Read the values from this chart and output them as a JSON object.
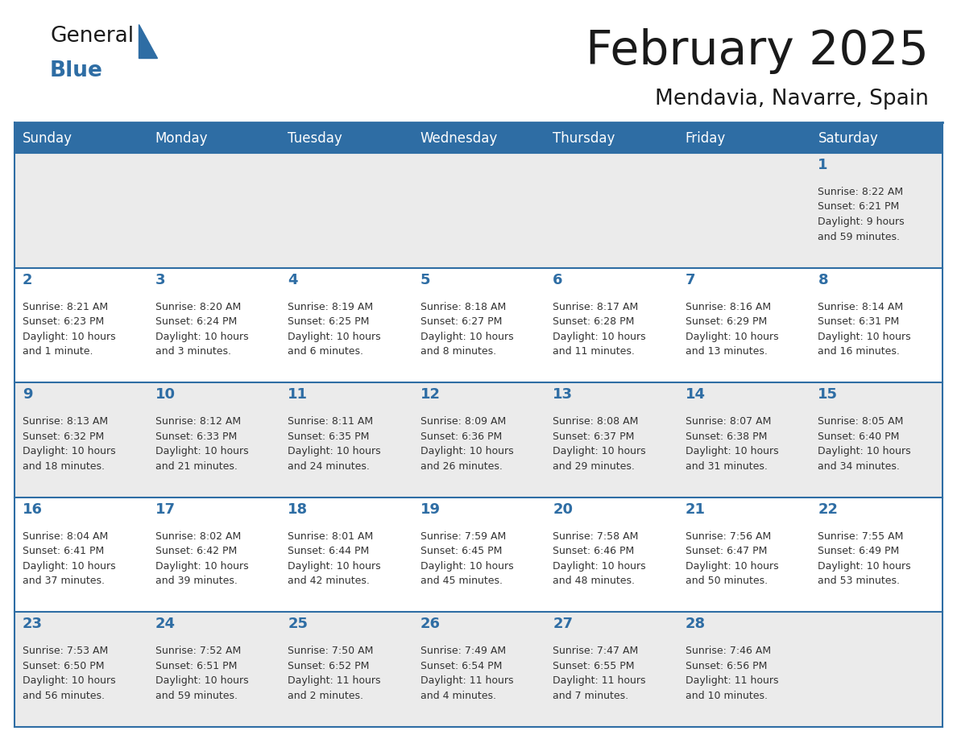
{
  "title": "February 2025",
  "subtitle": "Mendavia, Navarre, Spain",
  "header_bg": "#2E6DA4",
  "header_text": "#FFFFFF",
  "day_names": [
    "Sunday",
    "Monday",
    "Tuesday",
    "Wednesday",
    "Thursday",
    "Friday",
    "Saturday"
  ],
  "cell_bg_odd": "#EBEBEB",
  "cell_bg_even": "#FFFFFF",
  "cell_text": "#333333",
  "day_num_color": "#2E6DA4",
  "border_color": "#2E6DA4",
  "weeks": [
    [
      {
        "day": null,
        "info": null
      },
      {
        "day": null,
        "info": null
      },
      {
        "day": null,
        "info": null
      },
      {
        "day": null,
        "info": null
      },
      {
        "day": null,
        "info": null
      },
      {
        "day": null,
        "info": null
      },
      {
        "day": 1,
        "info": "Sunrise: 8:22 AM\nSunset: 6:21 PM\nDaylight: 9 hours\nand 59 minutes."
      }
    ],
    [
      {
        "day": 2,
        "info": "Sunrise: 8:21 AM\nSunset: 6:23 PM\nDaylight: 10 hours\nand 1 minute."
      },
      {
        "day": 3,
        "info": "Sunrise: 8:20 AM\nSunset: 6:24 PM\nDaylight: 10 hours\nand 3 minutes."
      },
      {
        "day": 4,
        "info": "Sunrise: 8:19 AM\nSunset: 6:25 PM\nDaylight: 10 hours\nand 6 minutes."
      },
      {
        "day": 5,
        "info": "Sunrise: 8:18 AM\nSunset: 6:27 PM\nDaylight: 10 hours\nand 8 minutes."
      },
      {
        "day": 6,
        "info": "Sunrise: 8:17 AM\nSunset: 6:28 PM\nDaylight: 10 hours\nand 11 minutes."
      },
      {
        "day": 7,
        "info": "Sunrise: 8:16 AM\nSunset: 6:29 PM\nDaylight: 10 hours\nand 13 minutes."
      },
      {
        "day": 8,
        "info": "Sunrise: 8:14 AM\nSunset: 6:31 PM\nDaylight: 10 hours\nand 16 minutes."
      }
    ],
    [
      {
        "day": 9,
        "info": "Sunrise: 8:13 AM\nSunset: 6:32 PM\nDaylight: 10 hours\nand 18 minutes."
      },
      {
        "day": 10,
        "info": "Sunrise: 8:12 AM\nSunset: 6:33 PM\nDaylight: 10 hours\nand 21 minutes."
      },
      {
        "day": 11,
        "info": "Sunrise: 8:11 AM\nSunset: 6:35 PM\nDaylight: 10 hours\nand 24 minutes."
      },
      {
        "day": 12,
        "info": "Sunrise: 8:09 AM\nSunset: 6:36 PM\nDaylight: 10 hours\nand 26 minutes."
      },
      {
        "day": 13,
        "info": "Sunrise: 8:08 AM\nSunset: 6:37 PM\nDaylight: 10 hours\nand 29 minutes."
      },
      {
        "day": 14,
        "info": "Sunrise: 8:07 AM\nSunset: 6:38 PM\nDaylight: 10 hours\nand 31 minutes."
      },
      {
        "day": 15,
        "info": "Sunrise: 8:05 AM\nSunset: 6:40 PM\nDaylight: 10 hours\nand 34 minutes."
      }
    ],
    [
      {
        "day": 16,
        "info": "Sunrise: 8:04 AM\nSunset: 6:41 PM\nDaylight: 10 hours\nand 37 minutes."
      },
      {
        "day": 17,
        "info": "Sunrise: 8:02 AM\nSunset: 6:42 PM\nDaylight: 10 hours\nand 39 minutes."
      },
      {
        "day": 18,
        "info": "Sunrise: 8:01 AM\nSunset: 6:44 PM\nDaylight: 10 hours\nand 42 minutes."
      },
      {
        "day": 19,
        "info": "Sunrise: 7:59 AM\nSunset: 6:45 PM\nDaylight: 10 hours\nand 45 minutes."
      },
      {
        "day": 20,
        "info": "Sunrise: 7:58 AM\nSunset: 6:46 PM\nDaylight: 10 hours\nand 48 minutes."
      },
      {
        "day": 21,
        "info": "Sunrise: 7:56 AM\nSunset: 6:47 PM\nDaylight: 10 hours\nand 50 minutes."
      },
      {
        "day": 22,
        "info": "Sunrise: 7:55 AM\nSunset: 6:49 PM\nDaylight: 10 hours\nand 53 minutes."
      }
    ],
    [
      {
        "day": 23,
        "info": "Sunrise: 7:53 AM\nSunset: 6:50 PM\nDaylight: 10 hours\nand 56 minutes."
      },
      {
        "day": 24,
        "info": "Sunrise: 7:52 AM\nSunset: 6:51 PM\nDaylight: 10 hours\nand 59 minutes."
      },
      {
        "day": 25,
        "info": "Sunrise: 7:50 AM\nSunset: 6:52 PM\nDaylight: 11 hours\nand 2 minutes."
      },
      {
        "day": 26,
        "info": "Sunrise: 7:49 AM\nSunset: 6:54 PM\nDaylight: 11 hours\nand 4 minutes."
      },
      {
        "day": 27,
        "info": "Sunrise: 7:47 AM\nSunset: 6:55 PM\nDaylight: 11 hours\nand 7 minutes."
      },
      {
        "day": 28,
        "info": "Sunrise: 7:46 AM\nSunset: 6:56 PM\nDaylight: 11 hours\nand 10 minutes."
      },
      {
        "day": null,
        "info": null
      }
    ]
  ]
}
